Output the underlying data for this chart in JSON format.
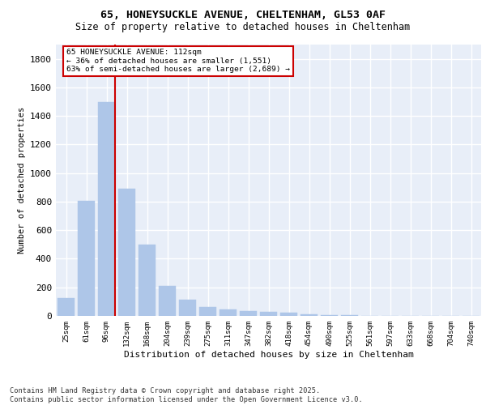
{
  "title_line1": "65, HONEYSUCKLE AVENUE, CHELTENHAM, GL53 0AF",
  "title_line2": "Size of property relative to detached houses in Cheltenham",
  "xlabel": "Distribution of detached houses by size in Cheltenham",
  "ylabel": "Number of detached properties",
  "footer_line1": "Contains HM Land Registry data © Crown copyright and database right 2025.",
  "footer_line2": "Contains public sector information licensed under the Open Government Licence v3.0.",
  "annotation_line1": "65 HONEYSUCKLE AVENUE: 112sqm",
  "annotation_line2": "← 36% of detached houses are smaller (1,551)",
  "annotation_line3": "63% of semi-detached houses are larger (2,689) →",
  "bar_color": "#aec6e8",
  "bar_edge_color": "#aec6e8",
  "annotation_box_color": "#cc0000",
  "vertical_line_color": "#cc0000",
  "background_color": "#e8eef8",
  "grid_color": "#ffffff",
  "categories": [
    "25sqm",
    "61sqm",
    "96sqm",
    "132sqm",
    "168sqm",
    "204sqm",
    "239sqm",
    "275sqm",
    "311sqm",
    "347sqm",
    "382sqm",
    "418sqm",
    "454sqm",
    "490sqm",
    "525sqm",
    "561sqm",
    "597sqm",
    "633sqm",
    "668sqm",
    "704sqm",
    "740sqm"
  ],
  "values": [
    127,
    806,
    1500,
    890,
    500,
    210,
    113,
    62,
    45,
    32,
    27,
    20,
    12,
    5,
    4,
    2,
    2,
    1,
    1,
    1,
    0
  ],
  "ylim": [
    0,
    1900
  ],
  "yticks": [
    0,
    200,
    400,
    600,
    800,
    1000,
    1200,
    1400,
    1600,
    1800
  ],
  "vertical_line_bin_index": 2
}
